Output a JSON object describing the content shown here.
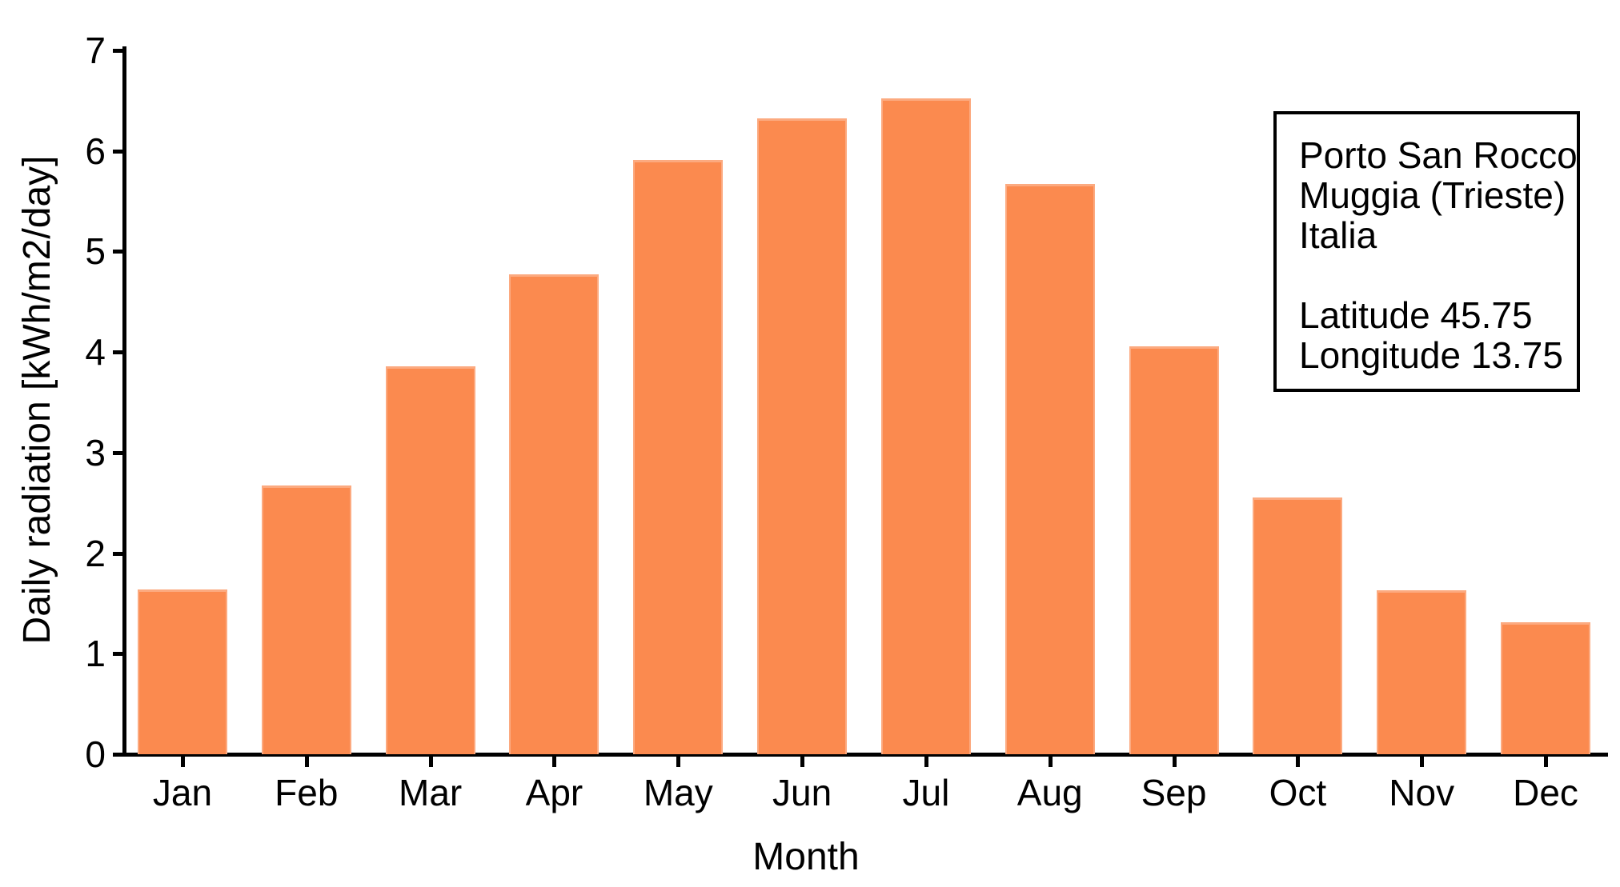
{
  "chart_data": {
    "type": "bar",
    "title": "",
    "categories": [
      "Jan",
      "Feb",
      "Mar",
      "Apr",
      "May",
      "Jun",
      "Jul",
      "Aug",
      "Sep",
      "Oct",
      "Nov",
      "Dec"
    ],
    "values": [
      1.64,
      2.67,
      3.86,
      4.77,
      5.91,
      6.32,
      6.52,
      5.67,
      4.06,
      2.55,
      1.63,
      1.31
    ],
    "xlabel": "Month",
    "ylabel": "Daily radiation [kWh/m2/day]",
    "ylim": [
      0,
      7
    ],
    "yticks": [
      0,
      1,
      2,
      3,
      4,
      5,
      6,
      7
    ],
    "grid": false,
    "legend_position": "none",
    "bar_color": "#fb8a4f",
    "bar_edge_color": "#fcaa80",
    "axis_color": "#000000",
    "annotation_box": {
      "lines": [
        "Porto San Rocco",
        "Muggia (Trieste)",
        "Italia",
        "",
        "Latitude 45.75",
        "Longitude 13.75"
      ]
    }
  }
}
